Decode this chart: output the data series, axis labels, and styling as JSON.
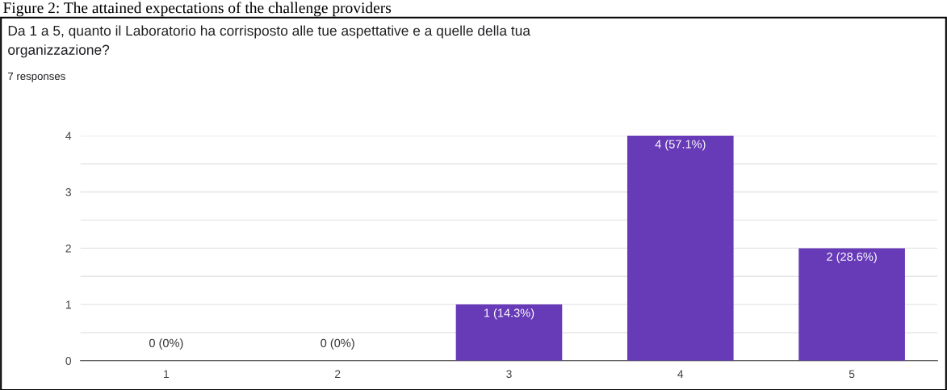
{
  "chart_data": {
    "type": "bar",
    "title": "Da 1 a 5, quanto il Laboratorio ha corrisposto alle tue aspettative e a quelle della tua\norganizzazione?",
    "subtitle": "7 responses",
    "annotations": [
      "Figure 2: The attained expectations of the challenge providers"
    ],
    "categories": [
      "1",
      "2",
      "3",
      "4",
      "5"
    ],
    "values": [
      0,
      0,
      1,
      4,
      2
    ],
    "color": "#673ab7",
    "value_labels": [
      "0 (0%)",
      "0 (0%)",
      "1 (14.3%)",
      "4 (57.1%)",
      "2 (28.6%)"
    ],
    "ylim": [
      0,
      4
    ],
    "yticks": [
      0,
      {
        "value": 0.5,
        "label": null
      },
      1,
      {
        "value": 1.5,
        "label": null
      },
      2,
      {
        "value": 2.5,
        "label": null
      },
      3,
      {
        "value": 3.5,
        "label": null
      },
      4
    ],
    "grid": "y"
  }
}
